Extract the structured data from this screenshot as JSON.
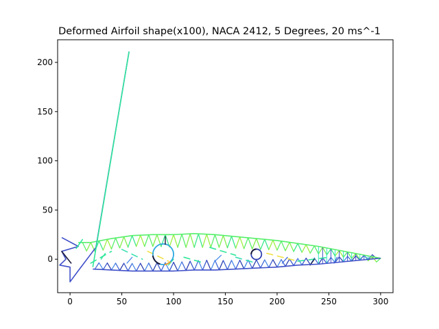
{
  "chart_data": {
    "type": "line",
    "title": "Deformed Airfoil shape(x100), NACA 2412, 5 Degrees, 20 ms^-1",
    "xlabel": "",
    "ylabel": "",
    "xlim": [
      -12,
      312
    ],
    "ylim": [
      -34,
      223
    ],
    "xticks": [
      0,
      50,
      100,
      150,
      200,
      250,
      300
    ],
    "yticks": [
      0,
      50,
      100,
      150,
      200
    ],
    "grid": false,
    "colors": {
      "structure": "#3f4fc8",
      "mast": "#2ee69a",
      "mast_outer": "#5a5ad0",
      "upper_truss": "#56ef6a",
      "lower_truss": "#4169d8",
      "dark": "#1a1a3a",
      "accent": "#f0a030"
    },
    "series": [
      {
        "values": [
          [
            -8,
            22
          ],
          [
            8,
            13
          ],
          [
            -8,
            8
          ],
          [
            -4,
            0
          ],
          [
            -10,
            -6
          ],
          [
            0,
            -8
          ],
          [
            0,
            -23
          ],
          [
            7,
            -13
          ],
          [
            25,
            12
          ],
          [
            57,
            211
          ]
        ]
      },
      {
        "values": [
          [
            22,
            -8
          ],
          [
            57,
            211
          ]
        ]
      },
      {
        "values": [
          [
            8,
            17
          ],
          [
            20,
            17
          ],
          [
            40,
            21
          ],
          [
            60,
            24
          ],
          [
            80,
            25
          ],
          [
            100,
            25
          ],
          [
            120,
            26
          ],
          [
            140,
            25
          ],
          [
            160,
            23
          ],
          [
            180,
            21
          ],
          [
            200,
            19
          ],
          [
            220,
            16
          ],
          [
            240,
            13
          ],
          [
            260,
            9
          ],
          [
            280,
            5
          ],
          [
            300,
            1
          ]
        ]
      },
      {
        "values": [
          [
            22,
            -10
          ],
          [
            40,
            -11
          ],
          [
            60,
            -12
          ],
          [
            80,
            -12
          ],
          [
            100,
            -12
          ],
          [
            120,
            -11
          ],
          [
            140,
            -11
          ],
          [
            160,
            -10
          ],
          [
            180,
            -9
          ],
          [
            200,
            -8
          ],
          [
            220,
            -6
          ],
          [
            240,
            -5
          ],
          [
            260,
            -3
          ],
          [
            280,
            -1
          ],
          [
            300,
            1
          ]
        ]
      }
    ],
    "circles": [
      {
        "x": 90,
        "y": 5,
        "r": 10
      },
      {
        "x": 180,
        "y": 5,
        "r": 5
      }
    ]
  }
}
